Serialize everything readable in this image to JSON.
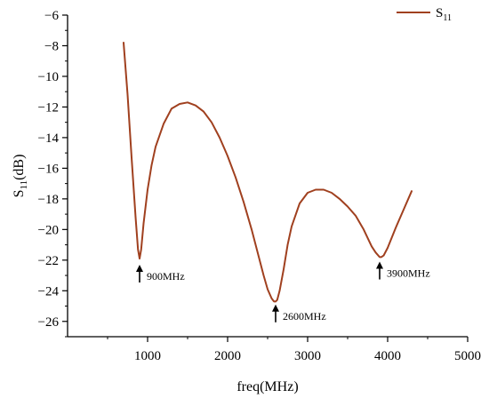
{
  "chart_data": {
    "type": "line",
    "xlabel": "freq(MHz)",
    "ylabel_main": "S",
    "ylabel_sub": "11",
    "ylabel_tail": "(dB)",
    "xlim": [
      0,
      5000
    ],
    "ylim": [
      -27,
      -6
    ],
    "xticks": [
      1000,
      2000,
      3000,
      4000,
      5000
    ],
    "xtick_labels": [
      "1000",
      "2000",
      "3000",
      "4000",
      "5000"
    ],
    "yticks": [
      -26,
      -24,
      -22,
      -20,
      -18,
      -16,
      -14,
      -12,
      -10,
      -8,
      -6
    ],
    "ytick_labels": [
      "−26",
      "−24",
      "−22",
      "−20",
      "−18",
      "−16",
      "−14",
      "−12",
      "−10",
      "−8",
      "−6"
    ],
    "grid": false,
    "legend": {
      "position": "top-right",
      "label_main": "S",
      "label_sub": "11"
    },
    "series": [
      {
        "name": "S11",
        "color": "#a0401f",
        "x": [
          700,
          750,
          800,
          850,
          880,
          900,
          920,
          950,
          1000,
          1050,
          1100,
          1200,
          1300,
          1400,
          1500,
          1600,
          1700,
          1800,
          1900,
          2000,
          2100,
          2200,
          2300,
          2400,
          2450,
          2500,
          2550,
          2580,
          2600,
          2620,
          2650,
          2700,
          2750,
          2800,
          2900,
          3000,
          3100,
          3200,
          3300,
          3400,
          3500,
          3600,
          3700,
          3800,
          3850,
          3900,
          3920,
          3950,
          4000,
          4100,
          4200,
          4300
        ],
        "y": [
          -7.8,
          -11.2,
          -15.3,
          -19.2,
          -21.3,
          -21.9,
          -21.3,
          -19.6,
          -17.4,
          -15.8,
          -14.6,
          -13.1,
          -12.1,
          -11.8,
          -11.7,
          -11.9,
          -12.3,
          -13.0,
          -14.0,
          -15.2,
          -16.6,
          -18.2,
          -20.0,
          -22.0,
          -23.0,
          -23.9,
          -24.5,
          -24.7,
          -24.7,
          -24.6,
          -24.0,
          -22.6,
          -21.0,
          -19.8,
          -18.3,
          -17.6,
          -17.4,
          -17.4,
          -17.6,
          -18.0,
          -18.5,
          -19.1,
          -20.0,
          -21.1,
          -21.5,
          -21.8,
          -21.8,
          -21.7,
          -21.2,
          -19.9,
          -18.7,
          -17.5
        ]
      }
    ],
    "annotations": [
      {
        "label": "900MHz",
        "x": 900,
        "y": -22.3
      },
      {
        "label": "2600MHz",
        "x": 2600,
        "y": -24.9
      },
      {
        "label": "3900MHz",
        "x": 3900,
        "y": -22.1
      }
    ]
  }
}
